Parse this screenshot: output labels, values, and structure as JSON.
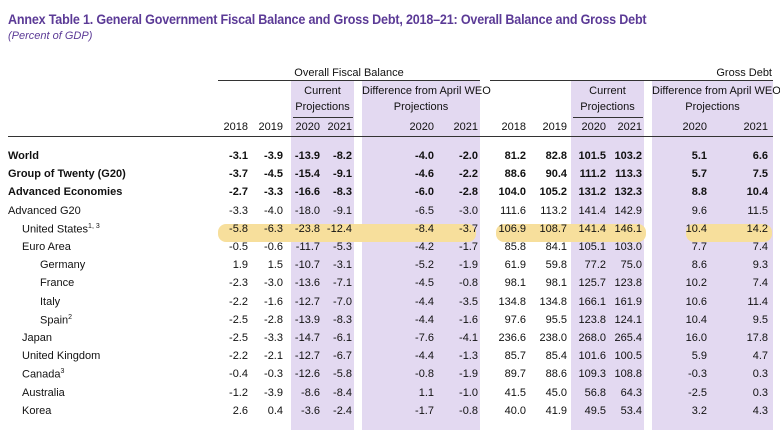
{
  "title": "Annex Table 1. General Government Fiscal Balance and Gross Debt, 2018–21: Overall Balance and Gross Debt",
  "subtitle": "(Percent of GDP)",
  "groups": {
    "fiscal": "Overall Fiscal Balance",
    "debt": "Gross Debt"
  },
  "subheads": {
    "current_line1": "Current",
    "current_line2": "Projections",
    "diff_line1": "Difference from April WEO",
    "diff_line2": "Projections"
  },
  "years": [
    "2018",
    "2019",
    "2020",
    "2021",
    "2020",
    "2021",
    "2018",
    "2019",
    "2020",
    "2021",
    "2020",
    "2021"
  ],
  "rows": [
    {
      "label": "World",
      "indent": 0,
      "bold": true,
      "sup": "",
      "values": [
        "-3.1",
        "-3.9",
        "-13.9",
        "-8.2",
        "-4.0",
        "-2.0",
        "81.2",
        "82.8",
        "101.5",
        "103.2",
        "5.1",
        "6.6"
      ]
    },
    {
      "label": "Group of Twenty (G20)",
      "indent": 0,
      "bold": true,
      "sup": "",
      "values": [
        "-3.7",
        "-4.5",
        "-15.4",
        "-9.1",
        "-4.6",
        "-2.2",
        "88.6",
        "90.4",
        "111.2",
        "113.3",
        "5.7",
        "7.5"
      ]
    },
    {
      "label": "Advanced Economies",
      "indent": 0,
      "bold": true,
      "sup": "",
      "values": [
        "-2.7",
        "-3.3",
        "-16.6",
        "-8.3",
        "-6.0",
        "-2.8",
        "104.0",
        "105.2",
        "131.2",
        "132.3",
        "8.8",
        "10.4"
      ]
    },
    {
      "label": "Advanced G20",
      "indent": 0,
      "bold": false,
      "sup": "",
      "values": [
        "-3.3",
        "-4.0",
        "-18.0",
        "-9.1",
        "-6.5",
        "-3.0",
        "111.6",
        "113.2",
        "141.4",
        "142.9",
        "9.6",
        "11.5"
      ]
    },
    {
      "label": "United States",
      "indent": 1,
      "bold": false,
      "sup": "1, 3",
      "values": [
        "-5.8",
        "-6.3",
        "-23.8",
        "-12.4",
        "-8.4",
        "-3.7",
        "106.9",
        "108.7",
        "141.4",
        "146.1",
        "10.4",
        "14.2"
      ]
    },
    {
      "label": "Euro Area",
      "indent": 1,
      "bold": false,
      "sup": "",
      "values": [
        "-0.5",
        "-0.6",
        "-11.7",
        "-5.3",
        "-4.2",
        "-1.7",
        "85.8",
        "84.1",
        "105.1",
        "103.0",
        "7.7",
        "7.4"
      ]
    },
    {
      "label": "Germany",
      "indent": 2,
      "bold": false,
      "sup": "",
      "values": [
        "1.9",
        "1.5",
        "-10.7",
        "-3.1",
        "-5.2",
        "-1.9",
        "61.9",
        "59.8",
        "77.2",
        "75.0",
        "8.6",
        "9.3"
      ]
    },
    {
      "label": "France",
      "indent": 2,
      "bold": false,
      "sup": "",
      "values": [
        "-2.3",
        "-3.0",
        "-13.6",
        "-7.1",
        "-4.5",
        "-0.8",
        "98.1",
        "98.1",
        "125.7",
        "123.8",
        "10.2",
        "7.4"
      ]
    },
    {
      "label": "Italy",
      "indent": 2,
      "bold": false,
      "sup": "",
      "values": [
        "-2.2",
        "-1.6",
        "-12.7",
        "-7.0",
        "-4.4",
        "-3.5",
        "134.8",
        "134.8",
        "166.1",
        "161.9",
        "10.6",
        "11.4"
      ]
    },
    {
      "label": "Spain",
      "indent": 2,
      "bold": false,
      "sup": "2",
      "values": [
        "-2.5",
        "-2.8",
        "-13.9",
        "-8.3",
        "-4.4",
        "-1.6",
        "97.6",
        "95.5",
        "123.8",
        "124.1",
        "10.4",
        "9.5"
      ]
    },
    {
      "label": "Japan",
      "indent": 1,
      "bold": false,
      "sup": "",
      "values": [
        "-2.5",
        "-3.3",
        "-14.7",
        "-6.1",
        "-7.6",
        "-4.1",
        "236.6",
        "238.0",
        "268.0",
        "265.4",
        "16.0",
        "17.8"
      ]
    },
    {
      "label": "United Kingdom",
      "indent": 1,
      "bold": false,
      "sup": "",
      "values": [
        "-2.2",
        "-2.1",
        "-12.7",
        "-6.7",
        "-4.4",
        "-1.3",
        "85.7",
        "85.4",
        "101.6",
        "100.5",
        "5.9",
        "4.7"
      ]
    },
    {
      "label": "Canada",
      "indent": 1,
      "bold": false,
      "sup": "3",
      "values": [
        "-0.4",
        "-0.3",
        "-12.6",
        "-5.8",
        "-0.8",
        "-1.9",
        "89.7",
        "88.6",
        "109.3",
        "108.8",
        "-0.3",
        "0.3"
      ]
    },
    {
      "label": "Australia",
      "indent": 1,
      "bold": false,
      "sup": "",
      "values": [
        "-1.2",
        "-3.9",
        "-8.6",
        "-8.4",
        "1.1",
        "-1.0",
        "41.5",
        "45.0",
        "56.8",
        "64.3",
        "-2.5",
        "0.3"
      ]
    },
    {
      "label": "Korea",
      "indent": 1,
      "bold": false,
      "sup": "",
      "values": [
        "2.6",
        "0.4",
        "-3.6",
        "-2.4",
        "-1.7",
        "-0.8",
        "40.0",
        "41.9",
        "49.5",
        "53.4",
        "3.2",
        "4.3"
      ]
    }
  ]
}
